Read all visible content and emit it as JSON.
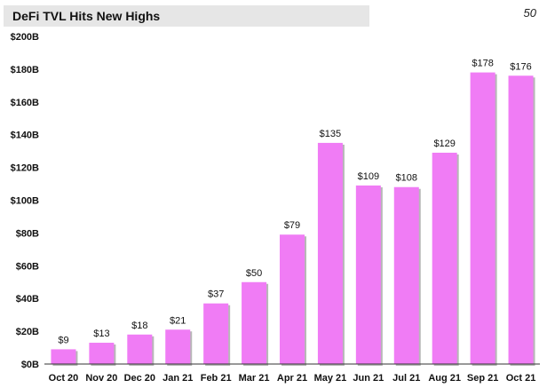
{
  "header": {
    "title": "DeFi TVL Hits New Highs",
    "page_number": "50"
  },
  "colors": {
    "bar": "#f07cf5",
    "bar_shadow": "#b7b7b7",
    "axis": "#333333",
    "text": "#111111"
  },
  "chart_data": {
    "type": "bar",
    "title": "DeFi TVL Hits New Highs",
    "categories": [
      "Oct 20",
      "Nov 20",
      "Dec 20",
      "Jan 21",
      "Feb 21",
      "Mar 21",
      "Apr 21",
      "May 21",
      "Jun 21",
      "Jul 21",
      "Aug 21",
      "Sep 21",
      "Oct 21"
    ],
    "values": [
      9,
      13,
      18,
      21,
      37,
      50,
      79,
      135,
      109,
      108,
      129,
      178,
      176
    ],
    "data_labels": [
      "$9",
      "$13",
      "$18",
      "$21",
      "$37",
      "$50",
      "$79",
      "$135",
      "$109",
      "$108",
      "$129",
      "$178",
      "$176"
    ],
    "ylim": [
      0,
      200
    ],
    "yticks": [
      0,
      20,
      40,
      60,
      80,
      100,
      120,
      140,
      160,
      180,
      200
    ],
    "ytick_labels": [
      "$0B",
      "$20B",
      "$40B",
      "$60B",
      "$80B",
      "$100B",
      "$120B",
      "$140B",
      "$160B",
      "$180B",
      "$200B"
    ],
    "xlabel": "",
    "ylabel": "",
    "grid": false,
    "legend": "none"
  }
}
